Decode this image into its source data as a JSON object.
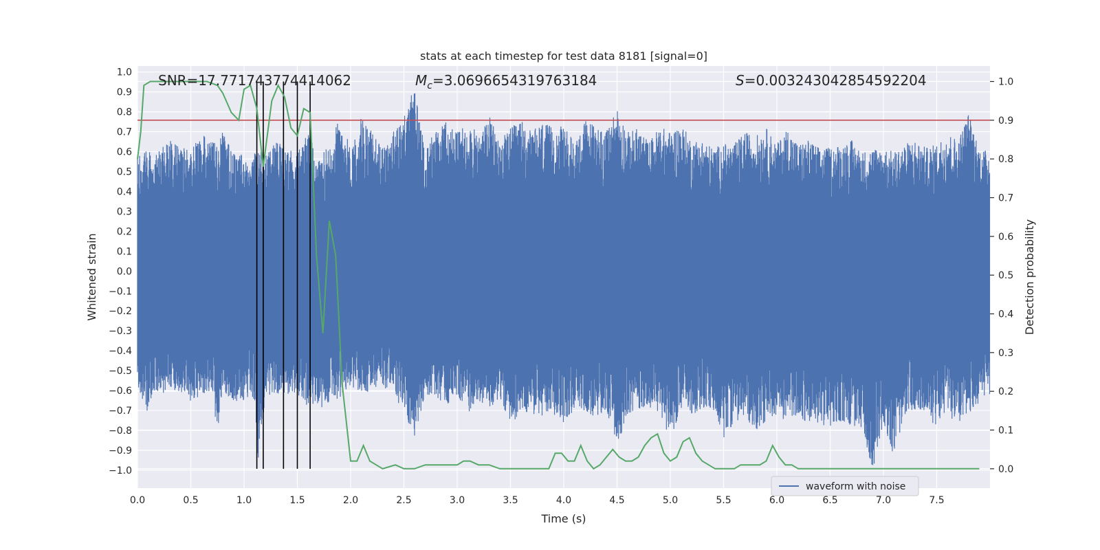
{
  "chart_data": {
    "type": "line",
    "title": "stats at each timestep for test data 8181 [signal=0]",
    "xlabel": "Time (s)",
    "ylabel": "Whitened strain",
    "ylabel_right": "Detection probability",
    "xlim": [
      0.0,
      8.0
    ],
    "ylim": [
      -1.09,
      1.03
    ],
    "ylim_right": [
      -0.05,
      1.04
    ],
    "x_ticks": [
      0.0,
      0.5,
      1.0,
      1.5,
      2.0,
      2.5,
      3.0,
      3.5,
      4.0,
      4.5,
      5.0,
      5.5,
      6.0,
      6.5,
      7.0,
      7.5
    ],
    "x_tick_labels": [
      "0.0",
      "0.5",
      "1.0",
      "1.5",
      "2.0",
      "2.5",
      "3.0",
      "3.5",
      "4.0",
      "4.5",
      "5.0",
      "5.5",
      "6.0",
      "6.5",
      "7.0",
      "7.5"
    ],
    "y_ticks": [
      -1.0,
      -0.9,
      -0.8,
      -0.7,
      -0.6,
      -0.5,
      -0.4,
      -0.3,
      -0.2,
      -0.1,
      0.0,
      0.1,
      0.2,
      0.3,
      0.4,
      0.5,
      0.6,
      0.7,
      0.8,
      0.9,
      1.0
    ],
    "y_tick_labels": [
      "−1.0",
      "−0.9",
      "−0.8",
      "−0.7",
      "−0.6",
      "−0.5",
      "−0.4",
      "−0.3",
      "−0.2",
      "−0.1",
      "0.0",
      "0.1",
      "0.2",
      "0.3",
      "0.4",
      "0.5",
      "0.6",
      "0.7",
      "0.8",
      "0.9",
      "1.0"
    ],
    "y_right_ticks": [
      0.0,
      0.1,
      0.2,
      0.3,
      0.4,
      0.5,
      0.6,
      0.7,
      0.8,
      0.9,
      1.0
    ],
    "y_right_tick_labels": [
      "0.0",
      "0.1",
      "0.2",
      "0.3",
      "0.4",
      "0.5",
      "0.6",
      "0.7",
      "0.8",
      "0.9",
      "1.0"
    ],
    "annotations": {
      "snr": "SNR=17.771743774414062",
      "mc_symbol": "M",
      "mc_subscript": "c",
      "mc_value": "=3.0696654319763184",
      "s_symbol": "S",
      "s_value": "=0.003243042854592204"
    },
    "legend": {
      "label": "waveform with noise",
      "position": "lower-right"
    },
    "threshold": {
      "value": 0.9,
      "axis": "right"
    },
    "vertical_lines": [
      1.12,
      1.18,
      1.37,
      1.5,
      1.62
    ],
    "waveform": {
      "name": "waveform with noise",
      "envelope_x": [
        0.0,
        0.1,
        0.15,
        0.2,
        0.3,
        0.4,
        0.5,
        0.6,
        0.7,
        0.75,
        0.8,
        0.9,
        1.0,
        1.05,
        1.1,
        1.13,
        1.2,
        1.3,
        1.4,
        1.5,
        1.6,
        1.7,
        1.8,
        1.9,
        2.0,
        2.1,
        2.2,
        2.3,
        2.4,
        2.5,
        2.6,
        2.7,
        2.8,
        2.9,
        3.0,
        3.1,
        3.2,
        3.3,
        3.4,
        3.5,
        3.6,
        3.7,
        3.8,
        3.9,
        4.0,
        4.1,
        4.2,
        4.3,
        4.4,
        4.5,
        4.6,
        4.7,
        4.8,
        4.9,
        5.0,
        5.1,
        5.2,
        5.3,
        5.4,
        5.5,
        5.6,
        5.7,
        5.8,
        5.9,
        6.0,
        6.1,
        6.2,
        6.3,
        6.4,
        6.5,
        6.6,
        6.7,
        6.8,
        6.9,
        7.0,
        7.1,
        7.2,
        7.3,
        7.4,
        7.5,
        7.6,
        7.7,
        7.8,
        7.9,
        8.0
      ],
      "envelope_upper": [
        0.58,
        0.62,
        0.58,
        0.6,
        0.66,
        0.62,
        0.62,
        0.68,
        0.68,
        0.62,
        0.7,
        0.6,
        0.58,
        0.5,
        0.6,
        0.62,
        0.58,
        0.65,
        0.62,
        0.6,
        0.7,
        0.55,
        0.65,
        0.78,
        0.62,
        0.78,
        0.7,
        0.62,
        0.7,
        0.78,
        0.93,
        0.62,
        0.72,
        0.75,
        0.7,
        0.76,
        0.68,
        0.78,
        0.66,
        0.72,
        0.76,
        0.7,
        0.75,
        0.72,
        0.73,
        0.65,
        0.76,
        0.74,
        0.7,
        0.83,
        0.7,
        0.72,
        0.65,
        0.73,
        0.7,
        0.74,
        0.66,
        0.66,
        0.62,
        0.64,
        0.64,
        0.7,
        0.68,
        0.72,
        0.64,
        0.72,
        0.64,
        0.66,
        0.62,
        0.62,
        0.64,
        0.66,
        0.6,
        0.62,
        0.62,
        0.6,
        0.64,
        0.66,
        0.62,
        0.64,
        0.7,
        0.66,
        0.8,
        0.62,
        0.6
      ],
      "envelope_lower": [
        -0.58,
        -0.72,
        -0.6,
        -0.62,
        -0.6,
        -0.62,
        -0.66,
        -0.62,
        -0.62,
        -0.82,
        -0.6,
        -0.66,
        -0.66,
        -0.62,
        -0.65,
        -1.0,
        -0.62,
        -0.64,
        -0.62,
        -0.62,
        -0.68,
        -0.7,
        -0.66,
        -0.64,
        -0.58,
        -0.62,
        -0.6,
        -0.58,
        -0.62,
        -0.72,
        -0.84,
        -0.62,
        -0.64,
        -0.68,
        -0.62,
        -0.72,
        -0.66,
        -0.7,
        -0.64,
        -0.78,
        -0.7,
        -0.72,
        -0.74,
        -0.72,
        -0.76,
        -0.7,
        -0.7,
        -0.76,
        -0.7,
        -0.88,
        -0.72,
        -0.7,
        -0.68,
        -0.72,
        -0.84,
        -0.7,
        -0.72,
        -0.7,
        -0.7,
        -0.84,
        -0.76,
        -0.74,
        -0.8,
        -0.76,
        -0.72,
        -0.76,
        -0.72,
        -0.78,
        -0.76,
        -0.8,
        -0.76,
        -0.78,
        -0.8,
        -1.0,
        -0.76,
        -0.94,
        -0.72,
        -0.7,
        -0.74,
        -0.78,
        -0.7,
        -0.8,
        -0.72,
        -0.66,
        -0.62
      ]
    },
    "probability": {
      "name": "Detection probability",
      "x": [
        0.0,
        0.03,
        0.06,
        0.12,
        0.25,
        0.5,
        0.65,
        0.75,
        0.8,
        0.88,
        0.95,
        1.0,
        1.06,
        1.12,
        1.18,
        1.26,
        1.32,
        1.38,
        1.44,
        1.5,
        1.56,
        1.62,
        1.68,
        1.74,
        1.8,
        1.86,
        1.92,
        1.96,
        2.0,
        2.06,
        2.12,
        2.18,
        2.24,
        2.3,
        2.36,
        2.42,
        2.5,
        2.6,
        2.7,
        2.8,
        2.9,
        3.0,
        3.06,
        3.12,
        3.2,
        3.3,
        3.4,
        3.5,
        3.6,
        3.7,
        3.8,
        3.86,
        3.92,
        3.98,
        4.04,
        4.1,
        4.16,
        4.22,
        4.28,
        4.34,
        4.4,
        4.46,
        4.52,
        4.58,
        4.64,
        4.7,
        4.76,
        4.82,
        4.88,
        4.94,
        5.0,
        5.06,
        5.12,
        5.18,
        5.24,
        5.3,
        5.36,
        5.42,
        5.5,
        5.6,
        5.66,
        5.72,
        5.78,
        5.84,
        5.9,
        5.96,
        6.02,
        6.08,
        6.14,
        6.2,
        6.26,
        6.32,
        6.4,
        6.5,
        6.6,
        6.7,
        6.76,
        6.82,
        6.9,
        7.0,
        7.1,
        7.2,
        7.3,
        7.4,
        7.5,
        7.6,
        7.7,
        7.8,
        7.9
      ],
      "y": [
        0.8,
        0.87,
        0.99,
        1.0,
        1.0,
        1.0,
        1.0,
        0.99,
        0.97,
        0.92,
        0.9,
        0.98,
        0.99,
        0.93,
        0.78,
        0.95,
        0.99,
        0.96,
        0.88,
        0.86,
        0.93,
        0.92,
        0.55,
        0.35,
        0.64,
        0.55,
        0.22,
        0.12,
        0.02,
        0.02,
        0.06,
        0.02,
        0.01,
        0.0,
        0.005,
        0.01,
        0.0,
        0.0,
        0.01,
        0.01,
        0.01,
        0.01,
        0.02,
        0.02,
        0.01,
        0.01,
        0.0,
        0.0,
        0.0,
        0.0,
        0.0,
        0.0,
        0.04,
        0.04,
        0.02,
        0.02,
        0.06,
        0.02,
        0.0,
        0.01,
        0.03,
        0.05,
        0.03,
        0.02,
        0.02,
        0.03,
        0.06,
        0.08,
        0.09,
        0.04,
        0.02,
        0.03,
        0.07,
        0.08,
        0.04,
        0.02,
        0.01,
        0.0,
        0.0,
        0.0,
        0.01,
        0.01,
        0.01,
        0.01,
        0.02,
        0.06,
        0.03,
        0.01,
        0.01,
        0.0,
        0.0,
        0.0,
        0.0,
        0.0,
        0.0,
        0.0,
        0.0,
        0.0,
        0.0,
        0.0,
        0.0,
        0.0,
        0.0,
        0.0,
        0.0,
        0.0,
        0.0,
        0.0,
        0.0
      ]
    },
    "colors": {
      "background": "#eaeaf2",
      "grid": "#ffffff",
      "waveform": "#4c72b0",
      "probability": "#55a868",
      "threshold": "#c44e52",
      "vertical_lines": "#000000",
      "text": "#262626"
    }
  }
}
